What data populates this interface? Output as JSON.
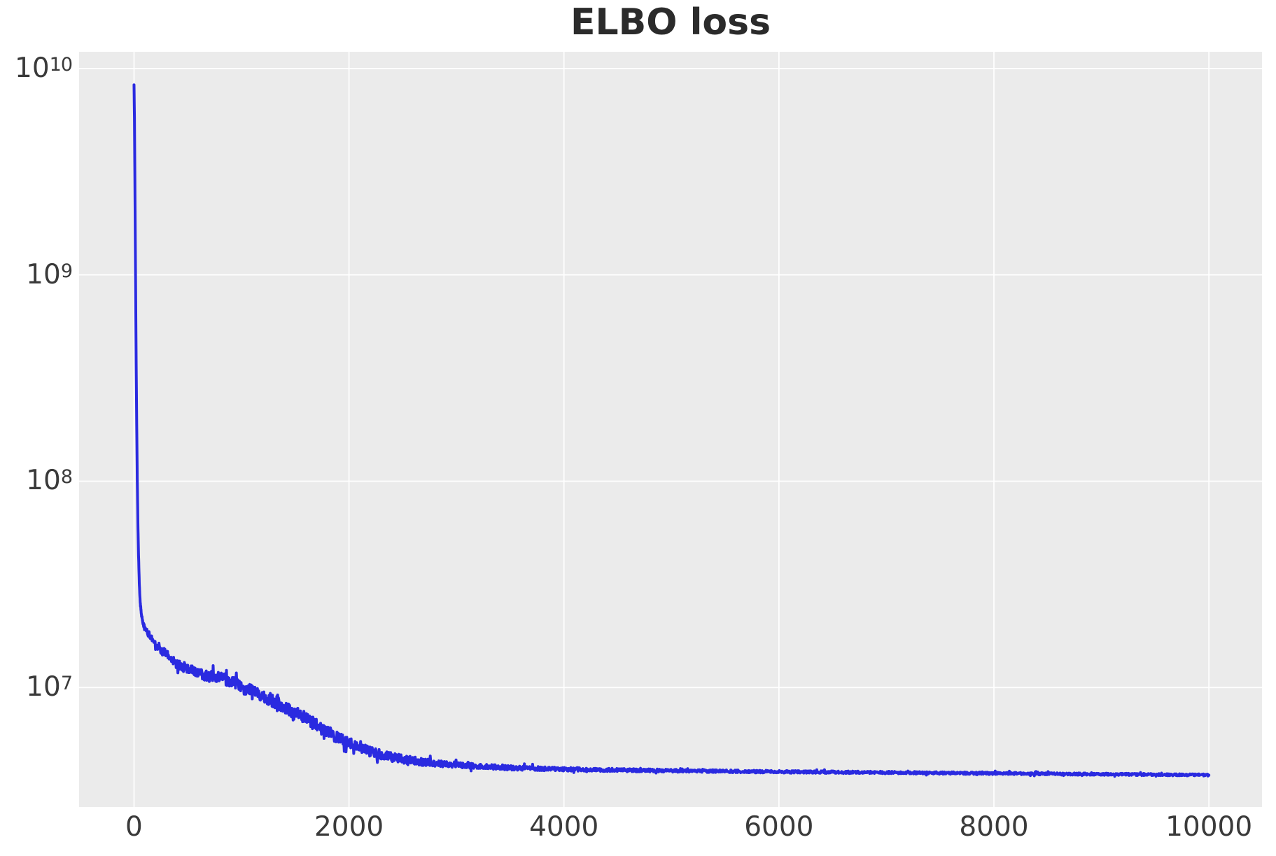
{
  "title": "ELBO loss",
  "colors": {
    "figure_background": "#ffffff",
    "axes_background": "#ebebeb",
    "gridline": "#ffffff",
    "line": "#2a2ae0",
    "tick_label": "#3a3a3a",
    "title": "#2b2b2b"
  },
  "chart_data": {
    "type": "line",
    "title": "ELBO loss",
    "xlabel": "",
    "ylabel": "",
    "legend": "none",
    "grid": "white major gridlines on light-gray axes (matplotlib ggplot style)",
    "y_scale": "log10",
    "xlim": [
      -511,
      10494
    ],
    "ylim_log10": [
      6.421,
      10.081
    ],
    "xticks": [
      {
        "value": 0,
        "label": "0"
      },
      {
        "value": 2000,
        "label": "2000"
      },
      {
        "value": 4000,
        "label": "4000"
      },
      {
        "value": 6000,
        "label": "6000"
      },
      {
        "value": 8000,
        "label": "8000"
      },
      {
        "value": 10000,
        "label": "10000"
      }
    ],
    "yticks": [
      {
        "log10": 7,
        "base": "10",
        "exp": "7"
      },
      {
        "log10": 8,
        "base": "10",
        "exp": "8"
      },
      {
        "log10": 9,
        "base": "10",
        "exp": "9"
      },
      {
        "log10": 10,
        "base": "10",
        "exp": "10"
      }
    ],
    "series": [
      {
        "name": "ELBO loss",
        "color": "#2a2ae0",
        "line_width": 4,
        "x_range": [
          0,
          10000
        ],
        "start_value": 8300000000.0,
        "value_after_initial_drop": 19000000.0,
        "value_at_2000": 5400000.0,
        "value_at_4000": 4000000.0,
        "final_value": 3800000.0,
        "shape_summary": "Starts near 8e9, plunges almost vertically to ~2e7 within the first ~100 steps, then decays noisily past 1e7 around step 1100 down to ~4e6 by step 3500, and stays nearly flat (slowly drifting to ~3.8e6) through step 10000.",
        "trend_log10_keypoints": [
          [
            0,
            9.92
          ],
          [
            4,
            9.76
          ],
          [
            8,
            9.47
          ],
          [
            12,
            9.15
          ],
          [
            16,
            8.85
          ],
          [
            20,
            8.57
          ],
          [
            25,
            8.28
          ],
          [
            30,
            8.02
          ],
          [
            36,
            7.8
          ],
          [
            42,
            7.64
          ],
          [
            50,
            7.49
          ],
          [
            58,
            7.41
          ],
          [
            70,
            7.35
          ],
          [
            85,
            7.31
          ],
          [
            100,
            7.285
          ],
          [
            150,
            7.25
          ],
          [
            200,
            7.215
          ],
          [
            250,
            7.185
          ],
          [
            300,
            7.16
          ],
          [
            350,
            7.135
          ],
          [
            400,
            7.115
          ],
          [
            500,
            7.09
          ],
          [
            600,
            7.07
          ],
          [
            700,
            7.055
          ],
          [
            800,
            7.045
          ],
          [
            900,
            7.03
          ],
          [
            1000,
            7.0
          ],
          [
            1100,
            6.985
          ],
          [
            1200,
            6.96
          ],
          [
            1300,
            6.935
          ],
          [
            1400,
            6.905
          ],
          [
            1500,
            6.875
          ],
          [
            1600,
            6.85
          ],
          [
            1700,
            6.815
          ],
          [
            1800,
            6.785
          ],
          [
            1900,
            6.755
          ],
          [
            2000,
            6.73
          ],
          [
            2100,
            6.71
          ],
          [
            2200,
            6.69
          ],
          [
            2300,
            6.675
          ],
          [
            2400,
            6.662
          ],
          [
            2500,
            6.652
          ],
          [
            2600,
            6.645
          ],
          [
            2800,
            6.633
          ],
          [
            3000,
            6.625
          ],
          [
            3200,
            6.618
          ],
          [
            3500,
            6.611
          ],
          [
            4000,
            6.604
          ],
          [
            4500,
            6.6
          ],
          [
            5000,
            6.597
          ],
          [
            5500,
            6.594
          ],
          [
            6000,
            6.592
          ],
          [
            6500,
            6.59
          ],
          [
            7000,
            6.588
          ],
          [
            7500,
            6.586
          ],
          [
            8000,
            6.584
          ],
          [
            8500,
            6.582
          ],
          [
            9000,
            6.58
          ],
          [
            9500,
            6.578
          ],
          [
            10000,
            6.576
          ]
        ],
        "noise_log10_keypoints": [
          [
            0,
            0.003
          ],
          [
            60,
            0.006
          ],
          [
            100,
            0.012
          ],
          [
            200,
            0.02
          ],
          [
            400,
            0.024
          ],
          [
            800,
            0.027
          ],
          [
            1200,
            0.03
          ],
          [
            1600,
            0.032
          ],
          [
            2000,
            0.027
          ],
          [
            2400,
            0.022
          ],
          [
            2800,
            0.016
          ],
          [
            3200,
            0.012
          ],
          [
            4000,
            0.009
          ],
          [
            5000,
            0.007
          ],
          [
            7000,
            0.006
          ],
          [
            10000,
            0.005
          ]
        ],
        "noise_seed": 42
      }
    ]
  }
}
